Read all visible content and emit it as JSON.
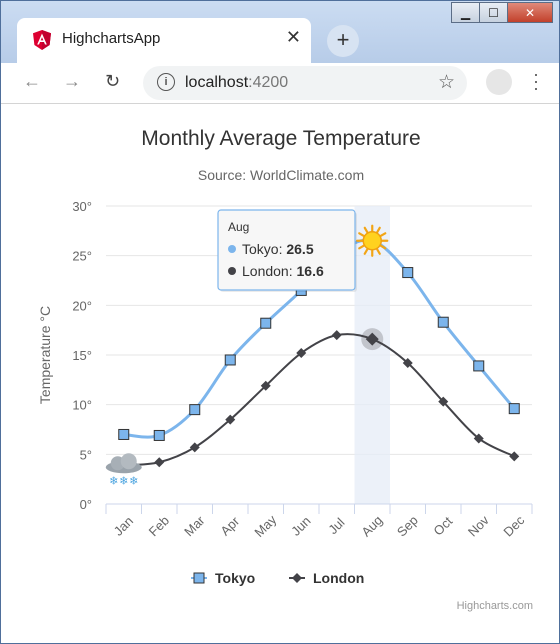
{
  "browser": {
    "tab_title": "HighchartsApp",
    "url_host": "localhost",
    "url_port": ":4200"
  },
  "chart_data": {
    "type": "line",
    "title": "Monthly Average Temperature",
    "subtitle": "Source: WorldClimate.com",
    "ylabel": "Temperature °C",
    "xlabel": "",
    "categories": [
      "Jan",
      "Feb",
      "Mar",
      "Apr",
      "May",
      "Jun",
      "Jul",
      "Aug",
      "Sep",
      "Oct",
      "Nov",
      "Dec"
    ],
    "ylim": [
      0,
      30
    ],
    "ytick_labels": [
      "0°",
      "5°",
      "10°",
      "15°",
      "20°",
      "25°",
      "30°"
    ],
    "grid": true,
    "legend_position": "bottom",
    "series": [
      {
        "name": "Tokyo",
        "marker": "square",
        "color": "#7cb5ec",
        "values": [
          7.0,
          6.9,
          9.5,
          14.5,
          18.2,
          21.5,
          25.2,
          26.5,
          23.3,
          18.3,
          13.9,
          9.6
        ]
      },
      {
        "name": "London",
        "marker": "diamond",
        "color": "#434348",
        "values": [
          3.9,
          4.2,
          5.7,
          8.5,
          11.9,
          15.2,
          17.0,
          16.6,
          14.2,
          10.3,
          6.6,
          4.8
        ]
      }
    ],
    "tooltip": {
      "header": "Aug",
      "rows": [
        {
          "name": "Tokyo",
          "value": "26.5"
        },
        {
          "name": "London",
          "value": "16.6"
        }
      ]
    },
    "credits": "Highcharts.com",
    "special_markers": {
      "Tokyo_Aug": "sun-icon",
      "London_Jan": "snow-cloud-icon"
    }
  }
}
